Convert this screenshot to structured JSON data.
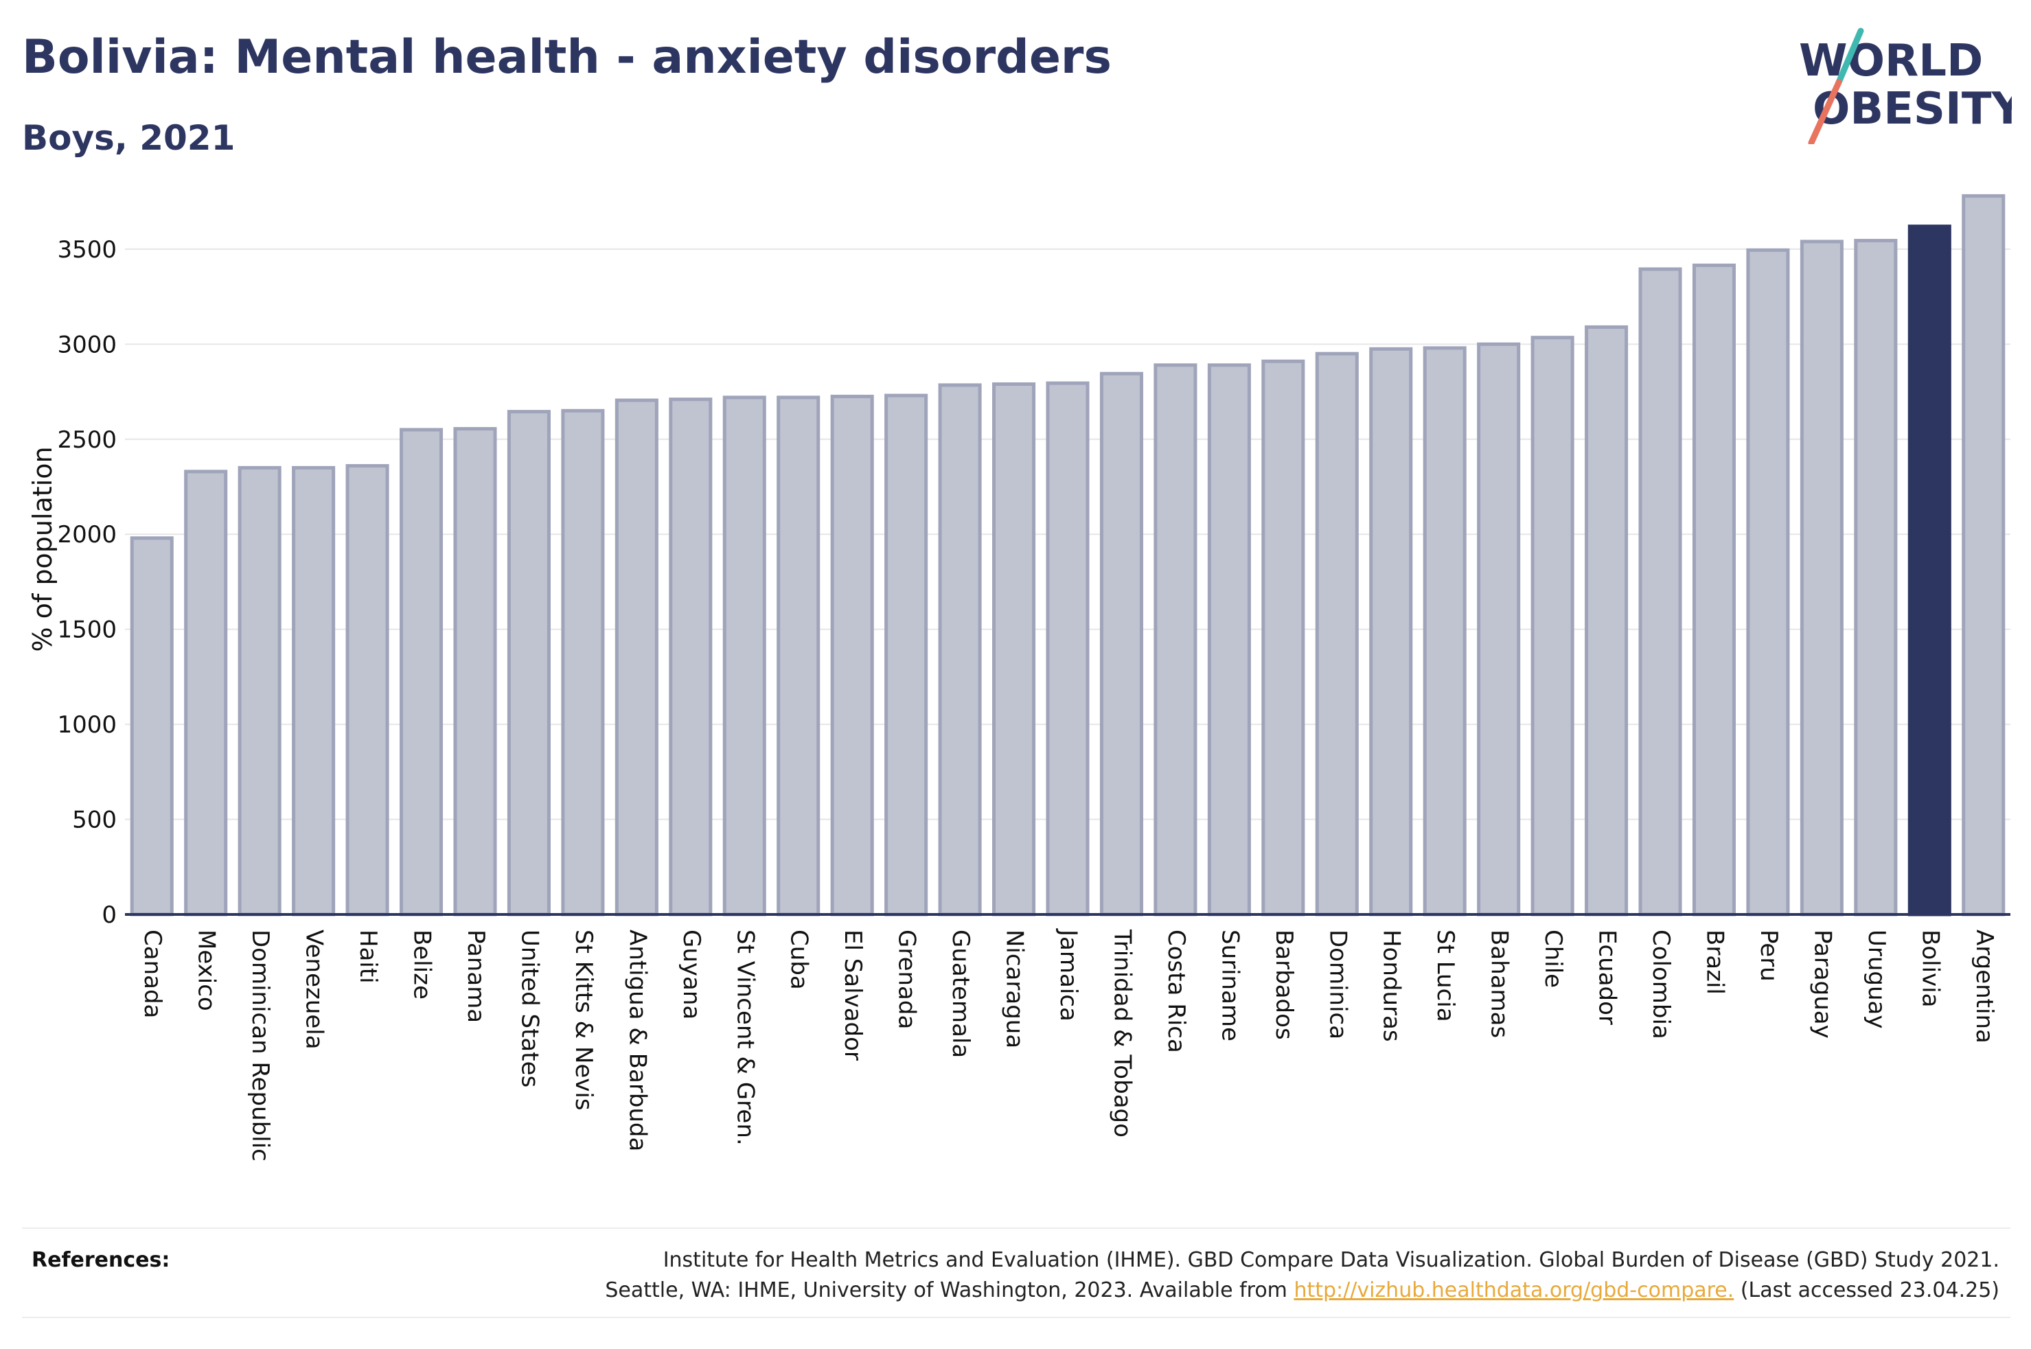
{
  "header": {
    "title": "Bolivia: Mental health - anxiety disorders",
    "subtitle": "Boys, 2021"
  },
  "logo": {
    "line1": "WORLD",
    "line2": "OBESITY"
  },
  "colors": {
    "highlight": "#2d3561",
    "bar_fill": "#c0c3d0",
    "bar_stroke": "#9fa4ba",
    "grid": "#e6e6e6",
    "logo_teal": "#3fb8b0",
    "logo_coral": "#e8735f"
  },
  "chart_data": {
    "type": "bar",
    "title": "Bolivia: Mental health - anxiety disorders",
    "subtitle": "Boys, 2021",
    "xlabel": "",
    "ylabel": "% of population",
    "ylim": [
      0,
      3850
    ],
    "yticks": [
      0,
      500,
      1000,
      1500,
      2000,
      2500,
      3000,
      3500
    ],
    "grid": true,
    "highlight": "Bolivia",
    "categories": [
      "Canada",
      "Mexico",
      "Dominican Republic",
      "Venezuela",
      "Haiti",
      "Belize",
      "Panama",
      "United States",
      "St Kitts & Nevis",
      "Antigua & Barbuda",
      "Guyana",
      "St Vincent & Gren.",
      "Cuba",
      "El Salvador",
      "Grenada",
      "Guatemala",
      "Nicaragua",
      "Jamaica",
      "Trinidad & Tobago",
      "Costa Rica",
      "Suriname",
      "Barbados",
      "Dominica",
      "Honduras",
      "St Lucia",
      "Bahamas",
      "Chile",
      "Ecuador",
      "Colombia",
      "Brazil",
      "Peru",
      "Paraguay",
      "Uruguay",
      "Bolivia",
      "Argentina"
    ],
    "values": [
      1980,
      2330,
      2350,
      2350,
      2360,
      2550,
      2555,
      2645,
      2650,
      2705,
      2710,
      2720,
      2720,
      2725,
      2730,
      2785,
      2790,
      2795,
      2845,
      2890,
      2890,
      2910,
      2950,
      2975,
      2980,
      3000,
      3035,
      3090,
      3395,
      3415,
      3495,
      3540,
      3545,
      3620,
      3780
    ]
  },
  "footer": {
    "label": "References:",
    "line1": "Institute for Health Metrics and Evaluation (IHME). GBD Compare Data Visualization. Global Burden of Disease (GBD) Study 2021.",
    "line2_pre": "Seattle, WA: IHME, University of Washington, 2023. Available from ",
    "link": "http://vizhub.healthdata.org/gbd-compare.",
    "line2_post": " (Last accessed 23.04.25)"
  }
}
